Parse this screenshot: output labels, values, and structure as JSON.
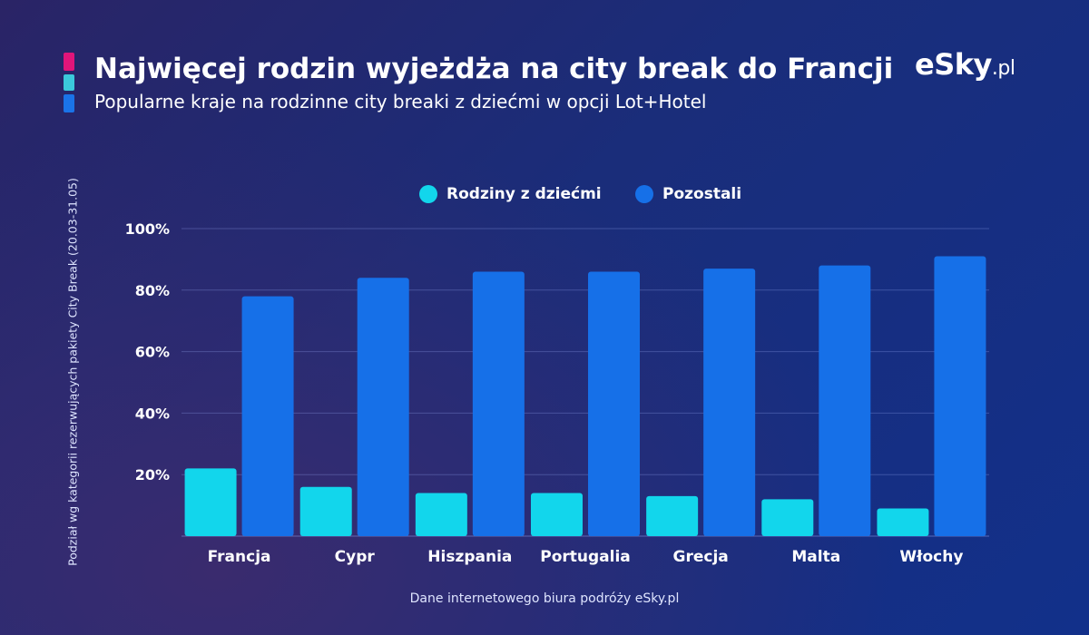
{
  "header": {
    "title": "Najwięcej rodzin wyjeżdża na city break do Francji",
    "subtitle": "Popularne kraje na rodzinne city breaki z dziećmi w opcji Lot+Hotel",
    "logo_main": "eSky",
    "logo_suffix": ".pl"
  },
  "footer": {
    "source": "Dane internetowego biura podróży eSky.pl"
  },
  "colors": {
    "accent_pink": "#e0157a",
    "accent_teal": "#3bc9db",
    "accent_blue": "#1a73e8",
    "series_families": "#12d6ec",
    "series_others": "#1670e8"
  },
  "chart_data": {
    "type": "bar",
    "title": "Najwięcej rodzin wyjeżdża na city break do Francji",
    "subtitle": "Popularne kraje na rodzinne city breaki z dziećmi w opcji Lot+Hotel",
    "categories": [
      "Francja",
      "Cypr",
      "Hiszpania",
      "Portugalia",
      "Grecja",
      "Malta",
      "Włochy"
    ],
    "series": [
      {
        "name": "Rodziny z dziećmi",
        "values": [
          22,
          16,
          14,
          14,
          13,
          12,
          9
        ]
      },
      {
        "name": "Pozostali",
        "values": [
          78,
          84,
          86,
          86,
          87,
          88,
          91
        ]
      }
    ],
    "xlabel": "",
    "ylabel": "Podział wg kategorii rezerwujących pakiety City Break (20.03-31.05)",
    "ylim": [
      0,
      100
    ],
    "yticks": [
      "20%",
      "40%",
      "60%",
      "80%",
      "100%"
    ],
    "ytick_values": [
      20,
      40,
      60,
      80,
      100
    ],
    "grid": true,
    "legend_position": "top-center"
  }
}
